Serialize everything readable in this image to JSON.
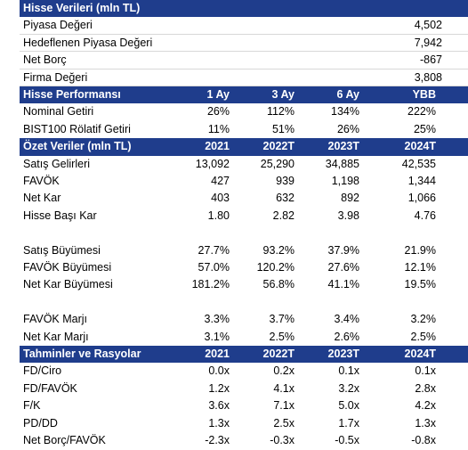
{
  "sections": [
    {
      "title": "Hisse Verileri (mln TL)",
      "rows": [
        {
          "label": "Piyasa Değeri",
          "values": [
            "4,502"
          ]
        },
        {
          "label": "Hedeflenen Piyasa Değeri",
          "values": [
            "7,942"
          ]
        },
        {
          "label": "Net Borç",
          "values": [
            "-867"
          ]
        },
        {
          "label": "Firma Değeri",
          "values": [
            "3,808"
          ]
        }
      ]
    },
    {
      "title": "Hisse Performansı",
      "columns": [
        "1 Ay",
        "3 Ay",
        "6 Ay",
        "YBB"
      ],
      "rows": [
        {
          "label": "Nominal Getiri",
          "values": [
            "26%",
            "112%",
            "134%",
            "222%"
          ]
        },
        {
          "label": "BIST100 Rölatif Getiri",
          "values": [
            "11%",
            "51%",
            "26%",
            "25%"
          ]
        }
      ]
    },
    {
      "title": "Özet Veriler (mln TL)",
      "columns": [
        "2021",
        "2022T",
        "2023T",
        "2024T"
      ],
      "rows": [
        {
          "label": "Satış Gelirleri",
          "values": [
            "13,092",
            "25,290",
            "34,885",
            "42,535"
          ]
        },
        {
          "label": "FAVÖK",
          "values": [
            "427",
            "939",
            "1,198",
            "1,344"
          ]
        },
        {
          "label": "Net Kar",
          "values": [
            "403",
            "632",
            "892",
            "1,066"
          ]
        },
        {
          "label": "Hisse Başı Kar",
          "values": [
            "1.80",
            "2.82",
            "3.98",
            "4.76"
          ]
        },
        {
          "label": "Satış Büyümesi",
          "values": [
            "27.7%",
            "93.2%",
            "37.9%",
            "21.9%"
          ]
        },
        {
          "label": "FAVÖK Büyümesi",
          "values": [
            "57.0%",
            "120.2%",
            "27.6%",
            "12.1%"
          ]
        },
        {
          "label": "Net Kar Büyümesi",
          "values": [
            "181.2%",
            "56.8%",
            "41.1%",
            "19.5%"
          ]
        },
        {
          "label": "FAVÖK Marjı",
          "values": [
            "3.3%",
            "3.7%",
            "3.4%",
            "3.2%"
          ]
        },
        {
          "label": "Net Kar Marjı",
          "values": [
            "3.1%",
            "2.5%",
            "2.6%",
            "2.5%"
          ]
        }
      ]
    },
    {
      "title": "Tahminler ve Rasyolar",
      "columns": [
        "2021",
        "2022T",
        "2023T",
        "2024T"
      ],
      "rows": [
        {
          "label": "FD/Ciro",
          "values": [
            "0.0x",
            "0.2x",
            "0.1x",
            "0.1x"
          ]
        },
        {
          "label": "FD/FAVÖK",
          "values": [
            "1.2x",
            "4.1x",
            "3.2x",
            "2.8x"
          ]
        },
        {
          "label": "F/K",
          "values": [
            "3.6x",
            "7.1x",
            "5.0x",
            "4.2x"
          ]
        },
        {
          "label": "PD/DD",
          "values": [
            "1.3x",
            "2.5x",
            "1.7x",
            "1.3x"
          ]
        },
        {
          "label": "Net Borç/FAVÖK",
          "values": [
            "-2.3x",
            "-0.3x",
            "-0.5x",
            "-0.8x"
          ]
        }
      ]
    }
  ]
}
